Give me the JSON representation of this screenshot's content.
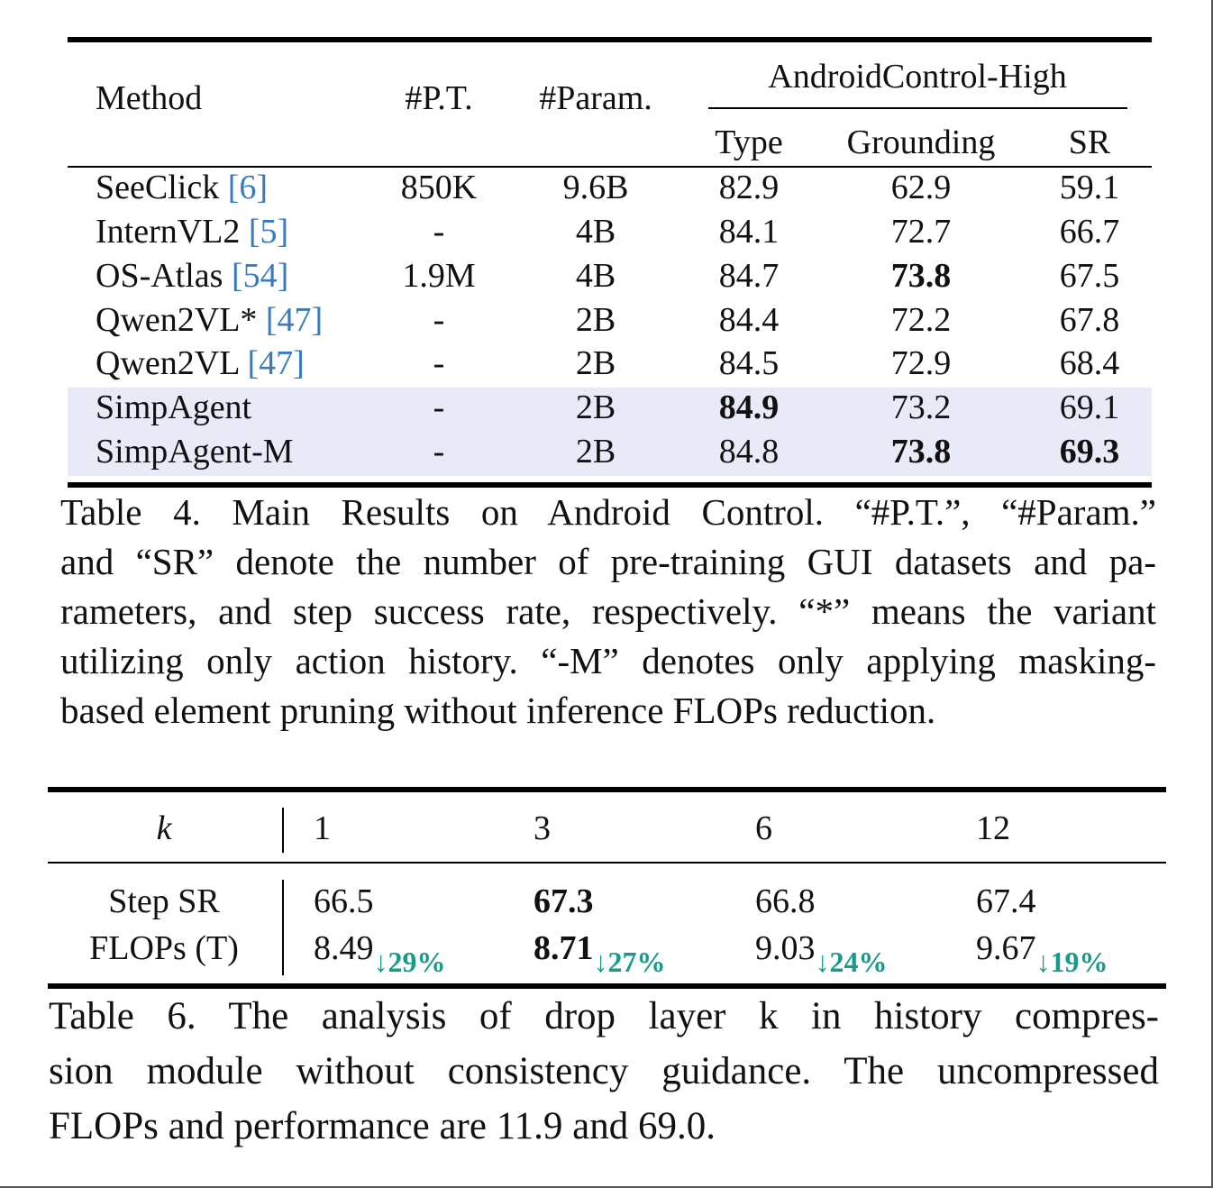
{
  "table4": {
    "headers": {
      "method": "Method",
      "pt": "#P.T.",
      "param": "#Param.",
      "group": "AndroidControl-High",
      "type": "Type",
      "grounding": "Grounding",
      "sr": "SR"
    },
    "rows": [
      {
        "name": "SeeClick",
        "cite": "[6]",
        "pt": "850K",
        "param": "9.6B",
        "type": "82.9",
        "grounding": "62.9",
        "sr": "59.1"
      },
      {
        "name": "InternVL2",
        "cite": "[5]",
        "pt": "-",
        "param": "4B",
        "type": "84.1",
        "grounding": "72.7",
        "sr": "66.7"
      },
      {
        "name": "OS-Atlas",
        "cite": "[54]",
        "pt": "1.9M",
        "param": "4B",
        "type": "84.7",
        "grounding": "73.8",
        "sr": "67.5"
      },
      {
        "name": "Qwen2VL*",
        "cite": "[47]",
        "pt": "-",
        "param": "2B",
        "type": "84.4",
        "grounding": "72.2",
        "sr": "67.8"
      },
      {
        "name": "Qwen2VL",
        "cite": "[47]",
        "pt": "-",
        "param": "2B",
        "type": "84.5",
        "grounding": "72.9",
        "sr": "68.4"
      },
      {
        "name": "SimpAgent",
        "cite": "",
        "pt": "-",
        "param": "2B",
        "type": "84.9",
        "grounding": "73.2",
        "sr": "69.1"
      },
      {
        "name": "SimpAgent-M",
        "cite": "",
        "pt": "-",
        "param": "2B",
        "type": "84.8",
        "grounding": "73.8",
        "sr": "69.3"
      }
    ],
    "caption_lines": [
      "Table 4.  Main Results on Android Control.  “#P.T.”, “#Param.”",
      "and “SR” denote the number of pre-training GUI datasets and pa-",
      "rameters, and step success rate, respectively. “*” means the variant",
      "utilizing only action history. “-M” denotes only applying masking-",
      "based element pruning without inference FLOPs reduction."
    ]
  },
  "table6": {
    "k_label": "k",
    "k_values": [
      "1",
      "3",
      "6",
      "12"
    ],
    "row1_label": "Step SR",
    "row2_label": "FLOPs (T)",
    "step_sr": [
      "66.5",
      "67.3",
      "66.8",
      "67.4"
    ],
    "flops": [
      "8.49",
      "8.71",
      "9.03",
      "9.67"
    ],
    "reductions": [
      "↓29%",
      "↓27%",
      "↓24%",
      "↓19%"
    ],
    "caption_lines": [
      "Table 6.  The analysis of drop layer k in history compres-",
      "sion module without consistency guidance. The uncompressed",
      "FLOPs and performance are 11.9 and 69.0."
    ]
  },
  "colors": {
    "citation": "#3a7bbf",
    "highlight_row": "#e8ebf7",
    "reduction": "#1a9a8a"
  }
}
